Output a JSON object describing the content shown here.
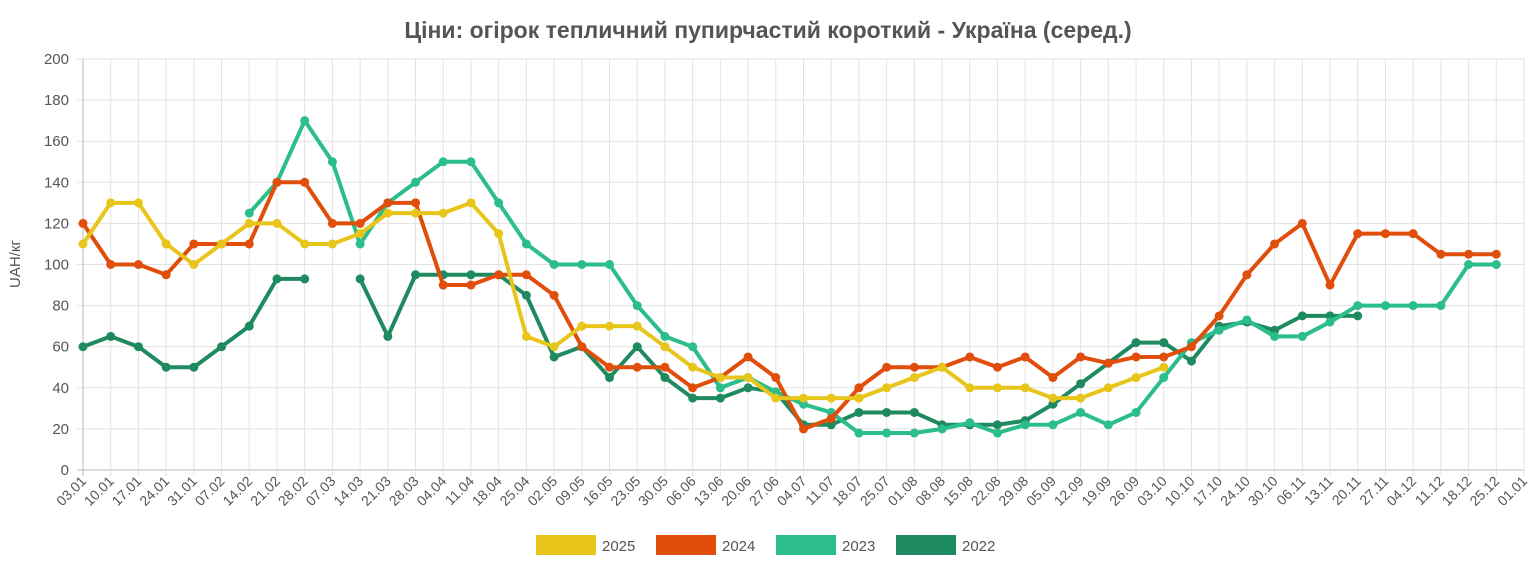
{
  "chart_data": {
    "type": "line",
    "title": "Ціни: огірок тепличний пупирчастий короткий - Україна (серед.)",
    "xlabel": "",
    "ylabel": "UAH/кг",
    "ylim": [
      0,
      200
    ],
    "yticks": [
      0,
      20,
      40,
      60,
      80,
      100,
      120,
      140,
      160,
      180,
      200
    ],
    "grid": true,
    "legend_position": "bottom",
    "categories": [
      "03.01",
      "10.01",
      "17.01",
      "24.01",
      "31.01",
      "07.02",
      "14.02",
      "21.02",
      "28.02",
      "07.03",
      "14.03",
      "21.03",
      "28.03",
      "04.04",
      "11.04",
      "18.04",
      "25.04",
      "02.05",
      "09.05",
      "16.05",
      "23.05",
      "30.05",
      "06.06",
      "13.06",
      "20.06",
      "27.06",
      "04.07",
      "11.07",
      "18.07",
      "25.07",
      "01.08",
      "08.08",
      "15.08",
      "22.08",
      "29.08",
      "05.09",
      "12.09",
      "19.09",
      "26.09",
      "03.10",
      "10.10",
      "17.10",
      "24.10",
      "30.10",
      "06.11",
      "13.11",
      "20.11",
      "27.11",
      "04.12",
      "11.12",
      "18.12",
      "25.12",
      "01.01"
    ],
    "series": [
      {
        "name": "2025",
        "color": "#e8c51a",
        "values": [
          110,
          130,
          130,
          110,
          100,
          110,
          120,
          120,
          110,
          110,
          115,
          125,
          125,
          125,
          130,
          115,
          65,
          60,
          70,
          70,
          70,
          60,
          50,
          45,
          45,
          35,
          35,
          35,
          35,
          40,
          45,
          50,
          40,
          40,
          40,
          35,
          35,
          40,
          45,
          50,
          null,
          null,
          null,
          null,
          null,
          null,
          null,
          null,
          null,
          null,
          null,
          null,
          null
        ]
      },
      {
        "name": "2024",
        "color": "#e14d0b",
        "values": [
          120,
          100,
          100,
          95,
          110,
          110,
          110,
          140,
          140,
          120,
          120,
          130,
          130,
          90,
          90,
          95,
          95,
          85,
          60,
          50,
          50,
          50,
          40,
          45,
          55,
          45,
          20,
          25,
          40,
          50,
          50,
          50,
          55,
          50,
          55,
          45,
          55,
          52,
          55,
          55,
          60,
          75,
          95,
          110,
          120,
          90,
          115,
          115,
          115,
          105,
          105,
          105,
          null
        ]
      },
      {
        "name": "2023",
        "color": "#2bbd8a",
        "values": [
          null,
          null,
          null,
          null,
          null,
          null,
          125,
          140,
          170,
          150,
          110,
          130,
          140,
          150,
          150,
          130,
          110,
          100,
          100,
          100,
          80,
          65,
          60,
          40,
          45,
          38,
          32,
          28,
          18,
          18,
          18,
          20,
          23,
          18,
          22,
          22,
          28,
          22,
          28,
          45,
          62,
          68,
          73,
          65,
          65,
          72,
          80,
          80,
          80,
          80,
          100,
          100,
          null
        ]
      },
      {
        "name": "2022",
        "color": "#1e8a5f",
        "values": [
          60,
          65,
          60,
          50,
          50,
          60,
          70,
          93,
          93,
          null,
          93,
          65,
          95,
          95,
          95,
          95,
          85,
          55,
          60,
          45,
          60,
          45,
          35,
          35,
          40,
          38,
          22,
          22,
          28,
          28,
          28,
          22,
          22,
          22,
          24,
          32,
          42,
          52,
          62,
          62,
          53,
          70,
          72,
          68,
          75,
          75,
          75,
          null,
          null,
          null,
          null,
          null,
          null
        ]
      }
    ]
  }
}
